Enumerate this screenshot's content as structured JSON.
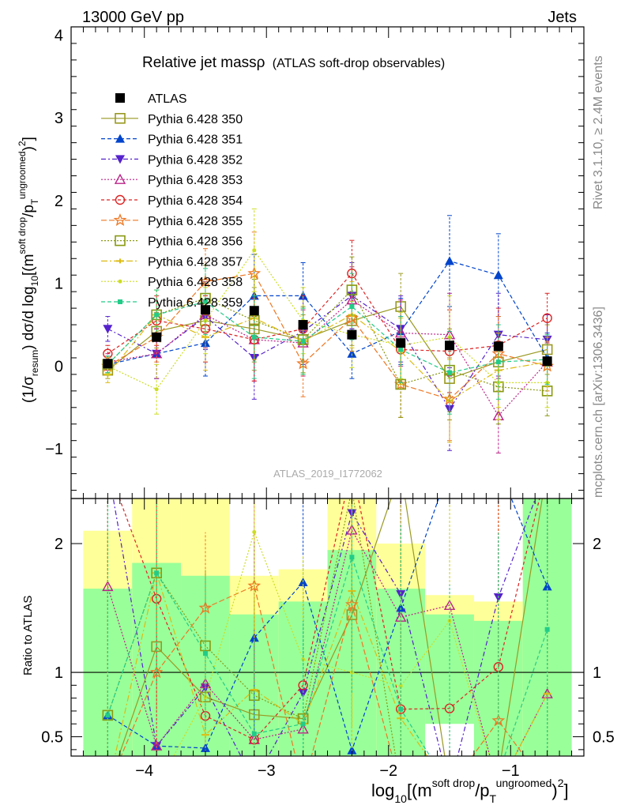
{
  "header": {
    "left": "13000 GeV pp",
    "right": "Jets"
  },
  "title": {
    "main": "Relative jet mass",
    "symbol": "ρ",
    "sub": "(ATLAS soft-drop observables)"
  },
  "watermark": "ATLAS_2019_I1772062",
  "side_label_top": "Rivet 3.1.10, ≥ 2.4M events",
  "side_label_bottom": "mcplots.cern.ch [arXiv:1306.3436]",
  "ylabel_main": {
    "pre": "(1/σ",
    "sub1": "resum",
    "mid": ") dσ/d log",
    "sub2": "10",
    "bracket": "[(m",
    "sup1": "soft drop",
    "slash": "/p",
    "sub3": "T",
    "sup2": "ungroomed",
    "end": ")",
    "sq": "2",
    "close": "]"
  },
  "ylabel_ratio": "Ratio to ATLAS",
  "xlabel": {
    "pre": "log",
    "sub1": "10",
    "bracket": "[(m",
    "sup1": "soft drop",
    "slash": "/p",
    "sub2": "T",
    "sup2": "ungroomed",
    "end": ")",
    "sq": "2",
    "close": "]"
  },
  "colors": {
    "data": "#000000",
    "band_inner": "#99ff99",
    "band_outer": "#ffff99"
  },
  "chart_data": {
    "type": "scatter",
    "x": [
      -4.3,
      -3.9,
      -3.5,
      -3.1,
      -2.7,
      -2.3,
      -1.9,
      -1.5,
      -1.1,
      -0.7
    ],
    "xlim": [
      -4.6,
      -0.4
    ],
    "xticks": [
      "−4",
      "−3",
      "−2",
      "−1"
    ],
    "xtick_values": [
      -4,
      -3,
      -2,
      -1
    ],
    "main_ylim": [
      -1.6,
      4.1
    ],
    "main_yticks": [
      "−1",
      "0",
      "1",
      "2",
      "3",
      "4"
    ],
    "main_ytick_values": [
      -1,
      0,
      1,
      2,
      3,
      4
    ],
    "ratio_ylim": [
      0.35,
      2.35
    ],
    "ratio_yticks": [
      "0.5",
      "1",
      "2"
    ],
    "ratio_ytick_values": [
      0.5,
      1,
      2
    ],
    "data": {
      "name": "ATLAS",
      "values": [
        0.03,
        0.35,
        0.68,
        0.67,
        0.5,
        0.38,
        0.28,
        0.25,
        0.24,
        0.06
      ],
      "band_inner": [
        [
          0.35,
          1.65
        ],
        [
          0.25,
          1.85
        ],
        [
          0.25,
          1.75
        ],
        [
          0.3,
          1.45
        ],
        [
          0.35,
          1.55
        ],
        [
          0.3,
          1.95
        ],
        [
          0.3,
          1.65
        ],
        [
          0.6,
          1.45
        ],
        [
          0.35,
          1.4
        ],
        [
          0.3,
          2.4
        ]
      ],
      "band_outer": [
        [
          0.35,
          2.1
        ],
        [
          0.3,
          2.4
        ],
        [
          0.35,
          2.4
        ],
        [
          0.4,
          1.75
        ],
        [
          0.35,
          1.8
        ],
        [
          0.3,
          2.4
        ],
        [
          0.4,
          2.0
        ],
        [
          0.7,
          1.6
        ],
        [
          0.7,
          1.55
        ],
        [
          0.3,
          2.4
        ]
      ]
    },
    "series": [
      {
        "name": "Pythia 6.428 350",
        "color": "#999922",
        "marker": "square-open",
        "dash": "",
        "values": [
          -0.05,
          0.42,
          0.55,
          0.45,
          0.32,
          0.55,
          0.72,
          -0.15,
          0.05,
          0.2
        ],
        "errors": [
          0.1,
          0.2,
          0.3,
          0.5,
          0.3,
          0.3,
          0.4,
          0.5,
          0.3,
          0.3
        ]
      },
      {
        "name": "Pythia 6.428 351",
        "color": "#0044cc",
        "marker": "triangle-up",
        "dash": "5,3",
        "values": [
          0.02,
          0.15,
          0.28,
          0.85,
          0.85,
          0.15,
          0.42,
          1.27,
          1.1,
          0.1
        ],
        "errors": [
          0.1,
          0.3,
          0.4,
          0.5,
          0.4,
          0.3,
          0.4,
          0.55,
          0.5,
          0.3
        ]
      },
      {
        "name": "Pythia 6.428 352",
        "color": "#5522cc",
        "marker": "triangle-down",
        "dash": "6,3,2,3",
        "values": [
          0.45,
          0.15,
          0.6,
          0.1,
          0.42,
          0.85,
          0.45,
          -0.52,
          0.38,
          0.32
        ],
        "errors": [
          0.15,
          0.3,
          0.4,
          0.5,
          0.4,
          0.4,
          0.4,
          0.5,
          0.5,
          0.3
        ]
      },
      {
        "name": "Pythia 6.428 353",
        "color": "#bb2288",
        "marker": "triangle-up-open",
        "dash": "2,2",
        "values": [
          0.05,
          0.15,
          0.62,
          0.32,
          0.28,
          0.8,
          0.4,
          0.38,
          -0.6,
          0.05
        ],
        "errors": [
          0.1,
          0.3,
          0.4,
          0.5,
          0.4,
          0.4,
          0.4,
          0.5,
          0.45,
          0.3
        ]
      },
      {
        "name": "Pythia 6.428 354",
        "color": "#dd2222",
        "marker": "circle-open",
        "dash": "4,3",
        "values": [
          0.15,
          0.55,
          0.45,
          0.32,
          0.45,
          1.12,
          0.2,
          0.18,
          0.25,
          0.58
        ],
        "errors": [
          0.1,
          0.3,
          0.4,
          0.5,
          0.4,
          0.4,
          0.4,
          0.5,
          0.45,
          0.3
        ]
      },
      {
        "name": "Pythia 6.428 355",
        "color": "#ee7722",
        "marker": "star-open",
        "dash": "7,3",
        "values": [
          0.0,
          0.35,
          1.02,
          1.12,
          0.03,
          0.58,
          -0.22,
          -0.4,
          0.15,
          0.0
        ],
        "errors": [
          0.1,
          0.3,
          0.4,
          0.5,
          0.4,
          0.4,
          0.4,
          0.5,
          0.45,
          0.3
        ]
      },
      {
        "name": "Pythia 6.428 356",
        "color": "#889911",
        "marker": "square-open",
        "dash": "2,2",
        "values": [
          0.02,
          0.62,
          0.82,
          0.55,
          0.32,
          0.92,
          -0.22,
          -0.05,
          -0.25,
          -0.3
        ],
        "errors": [
          0.1,
          0.3,
          0.4,
          0.5,
          0.4,
          0.4,
          0.4,
          0.5,
          0.45,
          0.3
        ]
      },
      {
        "name": "Pythia 6.428 357",
        "color": "#ddbb11",
        "marker": "tri-dash",
        "dash": "8,3,2,3",
        "values": [
          -0.1,
          0.62,
          0.35,
          0.58,
          0.3,
          0.62,
          0.18,
          -0.42,
          -0.05,
          0.05
        ],
        "errors": [
          0.1,
          0.3,
          0.4,
          0.5,
          0.4,
          0.4,
          0.4,
          0.5,
          0.45,
          0.3
        ]
      },
      {
        "name": "Pythia 6.428 358",
        "color": "#ccdd22",
        "marker": "dot",
        "dash": "2,2",
        "values": [
          0.0,
          -0.28,
          0.55,
          1.4,
          0.55,
          0.38,
          0.25,
          0.35,
          -0.2,
          -0.2
        ],
        "errors": [
          0.1,
          0.3,
          0.4,
          0.5,
          0.4,
          0.4,
          0.4,
          0.5,
          0.45,
          0.3
        ]
      },
      {
        "name": "Pythia 6.428 359",
        "color": "#22cc88",
        "marker": "square-small",
        "dash": "5,3",
        "values": [
          0.02,
          0.62,
          0.78,
          0.35,
          0.3,
          0.72,
          0.2,
          -0.08,
          0.05,
          0.08
        ],
        "errors": [
          0.1,
          0.3,
          0.4,
          0.5,
          0.4,
          0.4,
          0.4,
          0.5,
          0.45,
          0.3
        ]
      }
    ]
  }
}
